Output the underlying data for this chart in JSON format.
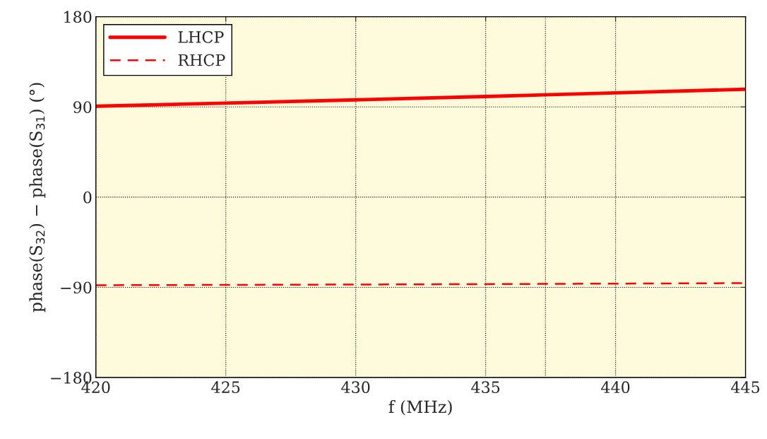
{
  "chart_data": {
    "type": "line",
    "xlabel": "f (MHz)",
    "ylabel": "phase(S$_{32}$) − phase(S$_{31}$) (°)",
    "x": [
      420,
      425,
      430,
      435,
      440,
      445
    ],
    "series": [
      {
        "name": "LHCP",
        "color": "#ff0000",
        "line_style": "solid",
        "values": [
          90.7,
          93.8,
          97.0,
          100.4,
          104.0,
          107.6
        ]
      },
      {
        "name": "RHCP",
        "color": "#ff0000",
        "line_style": "dashed",
        "values": [
          -87.9,
          -87.6,
          -87.2,
          -86.8,
          -86.3,
          -85.8
        ]
      }
    ],
    "xlim": [
      420,
      445
    ],
    "xticks": [
      420,
      425,
      430,
      435,
      440,
      445
    ],
    "ylim": [
      -180,
      180
    ],
    "yticks": [
      {
        "value": -180,
        "label": "−180"
      },
      {
        "value": -90,
        "label": "−90"
      },
      0,
      90,
      180
    ],
    "ref_lines": [
      {
        "axis": "x",
        "value": 437.3,
        "color": "#000000",
        "line_style": "dotted"
      }
    ],
    "grid": true,
    "legend": "top left",
    "marker": "none"
  }
}
